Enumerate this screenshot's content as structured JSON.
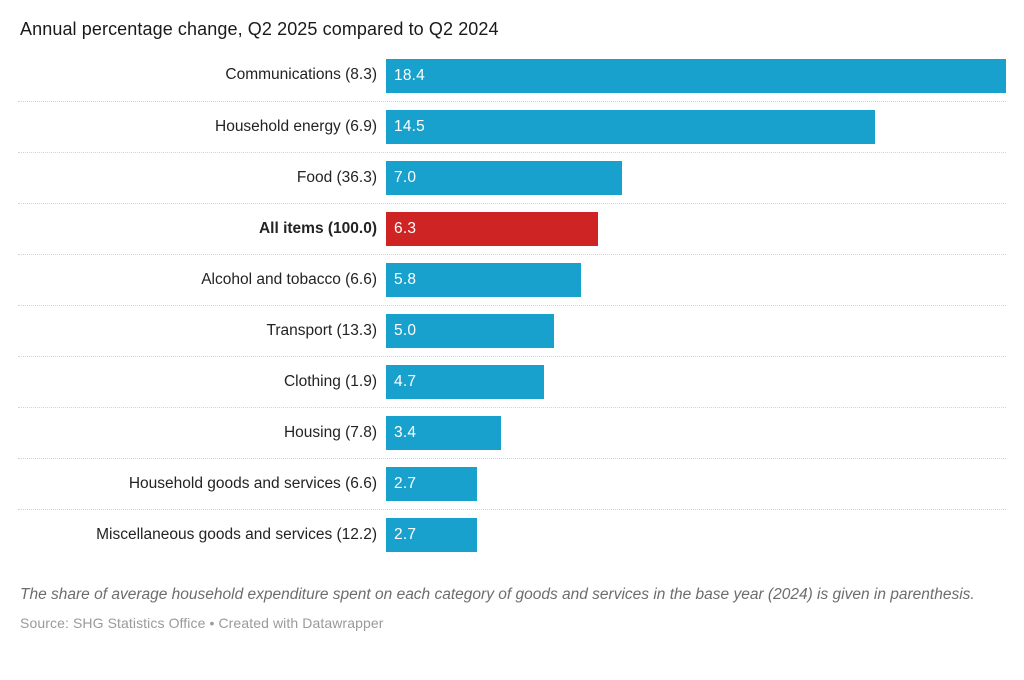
{
  "title": "Annual percentage change, Q2 2025 compared to Q2 2024",
  "chart_data": {
    "type": "bar",
    "orientation": "horizontal",
    "categories": [
      "Communications (8.3)",
      "Household energy (6.9)",
      "Food (36.3)",
      "All items (100.0)",
      "Alcohol and tobacco (6.6)",
      "Transport (13.3)",
      "Clothing (1.9)",
      "Housing (7.8)",
      "Household goods and services (6.6)",
      "Miscellaneous goods and services (12.2)"
    ],
    "values": [
      18.4,
      14.5,
      7.0,
      6.3,
      5.8,
      5.0,
      4.7,
      3.4,
      2.7,
      2.7
    ],
    "value_labels": [
      "18.4",
      "14.5",
      "7.0",
      "6.3",
      "5.8",
      "5.0",
      "4.7",
      "3.4",
      "2.7",
      "2.7"
    ],
    "highlight_index": 3,
    "highlight_category_bold": true,
    "bar_color": "#18a1cd",
    "highlight_color": "#ce2424",
    "xlim": [
      0,
      18.4
    ],
    "grid": "dotted-row-separators",
    "legend": "none",
    "value_label_position": "inside-start",
    "value_label_color": "#ffffff"
  },
  "footnote": "The share of average household expenditure spent on each category of goods and services in the base year (2024) is given in parenthesis.",
  "source": {
    "text": "Source: SHG Statistics Office • Created with Datawrapper"
  }
}
